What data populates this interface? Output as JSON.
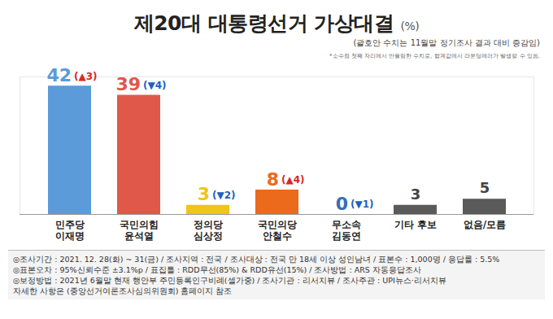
{
  "chart_data": {
    "type": "bar",
    "title": "제20대 대통령선거 가상대결",
    "unit": "(%)",
    "subtitle": "(괄호안 수치는 11월말 정기조사 결과 대비 증감임)",
    "note": "*소수점 첫째 자리에서 반올림한 수치로, 합계값에서 라운딩에러가 발생할 수 있음.",
    "categories": [
      "민주당\n이재명",
      "국민의힘\n윤석열",
      "정의당\n심상정",
      "국민의당\n안철수",
      "무소속\n김동연",
      "기타 후보",
      "없음/모름"
    ],
    "values": [
      42,
      39,
      3,
      8,
      0,
      3,
      5
    ],
    "changes": [
      3,
      -4,
      -2,
      4,
      -1,
      null,
      null
    ],
    "change_labels": [
      "(▲3)",
      "(▼4)",
      "(▼2)",
      "(▲4)",
      "(▼1)",
      null,
      null
    ],
    "colors": [
      "#5b9bd9",
      "#e0584a",
      "#f0c419",
      "#ec6a1c",
      "#3a6db5",
      "#5a5a5a",
      "#5a5a5a"
    ],
    "ylim": [
      0,
      45
    ],
    "yticks": [],
    "tick_labels": "x",
    "grid": false,
    "data_labels": true,
    "source_lines": [
      "◎조사기간 : 2021. 12. 28(화) ~ 31(금) / 조사지역 : 전국 / 조사대상 : 전국 만 18세 이상 성인남녀 / 표본수 : 1,000명 / 응답률 : 5.5%",
      "◎표본오차 : 95%신뢰수준 ±3.1%p / 표집틀 : RDD무선(85%) & RDD유선(15%) / 조사방법 : ARS 자동응답조사",
      "◎보정방법 : 2021년 6월말 현재 행안부 주민등록인구비례(셀가중) / 조사기관 : 리서치뷰 / 조사주관 : UPI뉴스·리서치뷰",
      "자세한 사항은 (중앙선거여론조사심의위원회) 홈페이지 참조"
    ]
  }
}
